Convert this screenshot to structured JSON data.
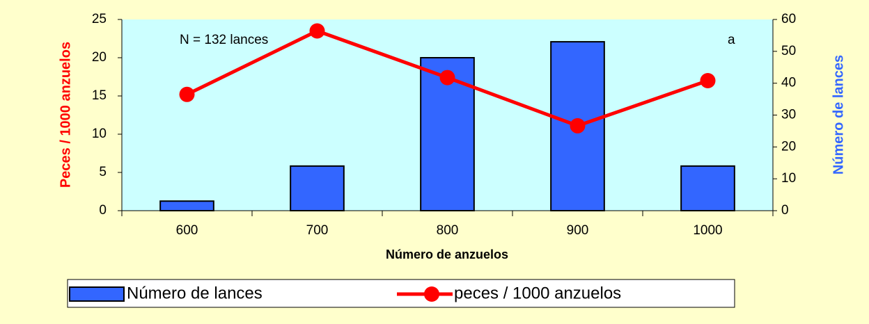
{
  "chart_data": {
    "type": "combo",
    "x_label": "Número de anzuelos",
    "y_label": "Peces / 1000 anzuelos",
    "y2_label": "Número de lances",
    "annotations": [
      "N =  132 lances",
      "a"
    ],
    "categories": [
      "600",
      "700",
      "800",
      "900",
      "1000"
    ],
    "series": [
      {
        "name": "Número de lances",
        "type": "bar",
        "axis": "y2",
        "color": "#3366ff",
        "values": [
          3,
          14,
          48,
          53,
          14
        ]
      },
      {
        "name": "peces / 1000 anzuelos",
        "type": "line",
        "color": "#ff0000",
        "values": [
          15.2,
          23.5,
          17.4,
          11.1,
          17.0
        ]
      }
    ],
    "ylim": [
      0,
      25
    ],
    "yticks": [
      0,
      5,
      10,
      15,
      20,
      25
    ],
    "y2lim": [
      0,
      60
    ],
    "y2ticks": [
      0,
      10,
      20,
      30,
      40,
      50,
      60
    ],
    "legend": "bottom"
  }
}
